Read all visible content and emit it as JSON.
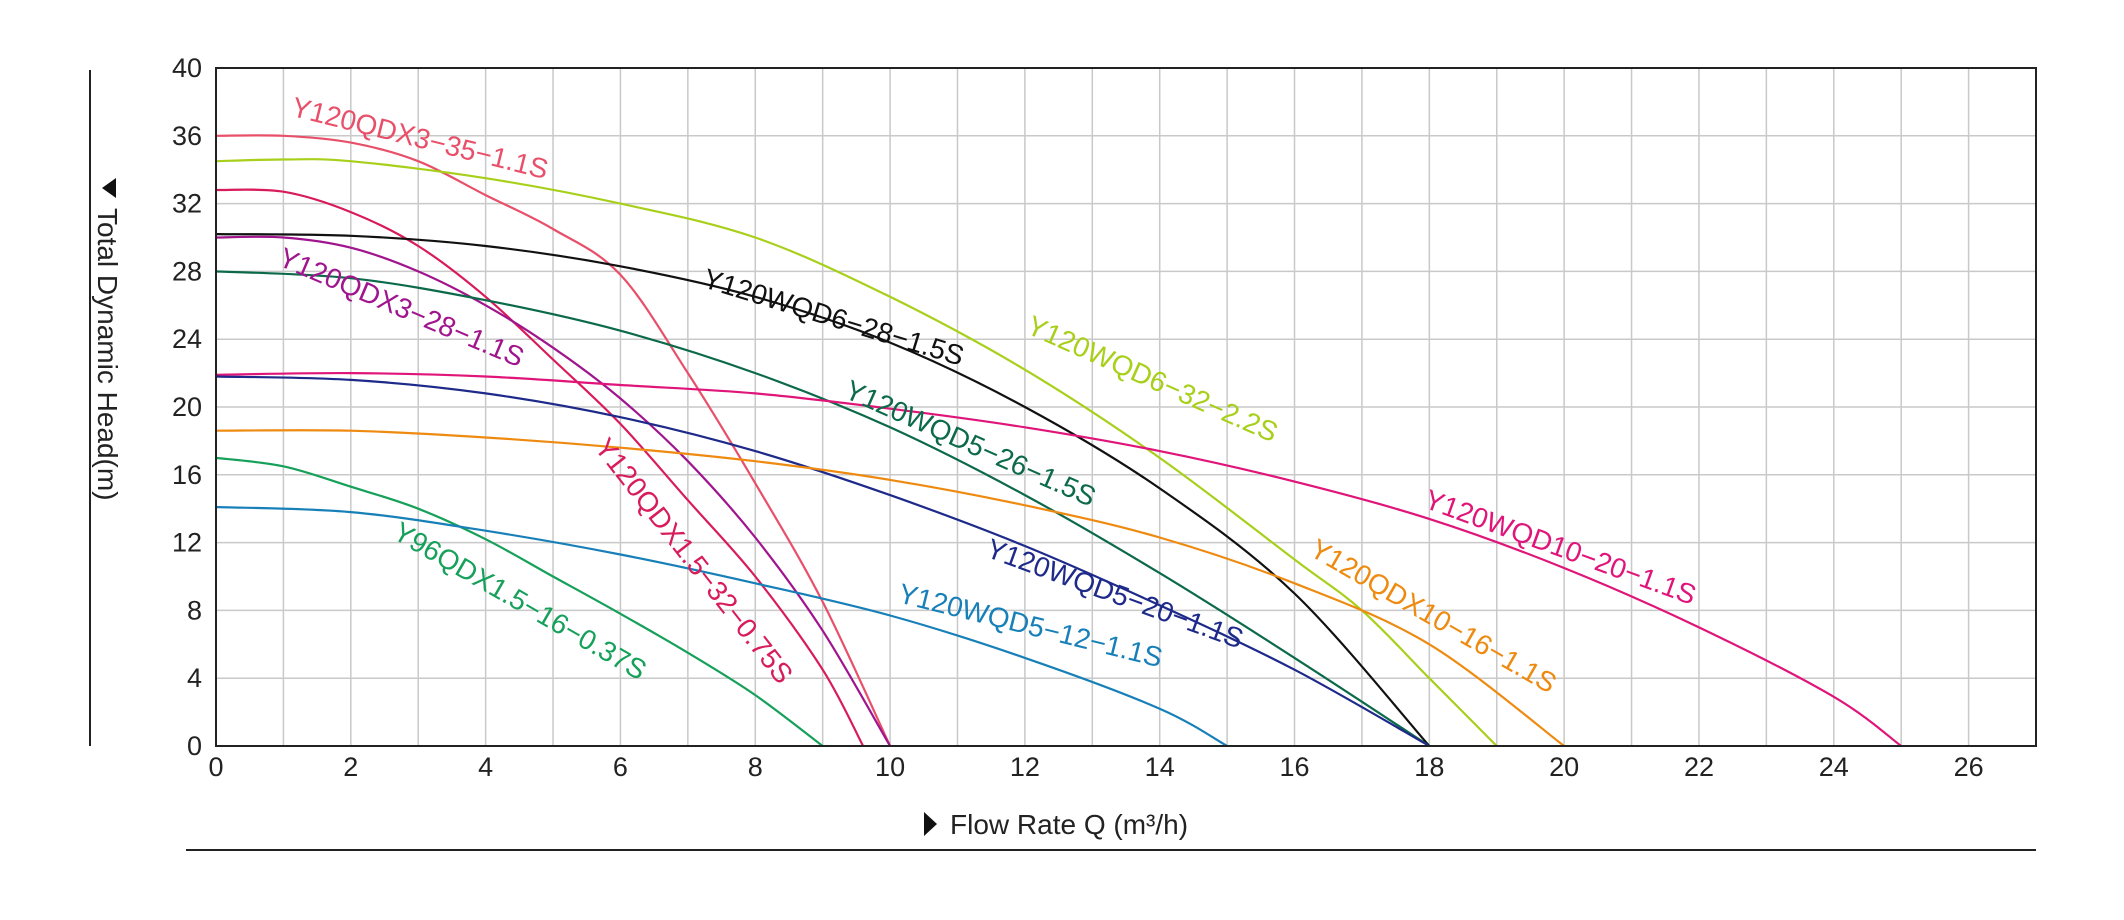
{
  "chart_data": {
    "type": "line",
    "title": "",
    "xlabel": "Flow Rate Q (m³/h)",
    "ylabel": "Total Dynamic Head(m)",
    "xlim": [
      0,
      27
    ],
    "ylim": [
      0,
      40
    ],
    "x_ticks": [
      "0",
      "2",
      "4",
      "6",
      "8",
      "10",
      "12",
      "14",
      "16",
      "18",
      "20",
      "22",
      "24",
      "26"
    ],
    "y_ticks": [
      "0",
      "4",
      "8",
      "12",
      "16",
      "20",
      "24",
      "28",
      "32",
      "36",
      "40"
    ],
    "grid": true,
    "legend": "none (labels placed on curves)",
    "series": [
      {
        "name": "Y120QDX3-35-1.1S",
        "color": "#e8506a",
        "x": [
          0,
          1,
          2,
          3,
          4,
          5,
          6,
          7,
          8,
          9,
          10
        ],
        "y": [
          36.0,
          36.0,
          35.6,
          34.5,
          32.5,
          30.5,
          27.8,
          22.0,
          15.5,
          8.5,
          0
        ]
      },
      {
        "name": "Y120WQD6-32-2.2S",
        "color": "#a8cf1a",
        "x": [
          0,
          1,
          2,
          4,
          6,
          8,
          10,
          12,
          14,
          16,
          17,
          18,
          19
        ],
        "y": [
          34.5,
          34.6,
          34.5,
          33.5,
          32.0,
          30.0,
          26.5,
          22.2,
          17.0,
          11.0,
          8.0,
          4.0,
          0
        ]
      },
      {
        "name": "Y120QDX1.5-32-0.75S",
        "color": "#d81b5a",
        "x": [
          0,
          1,
          2,
          3,
          4,
          5,
          6,
          7,
          8,
          9,
          9.6
        ],
        "y": [
          32.8,
          32.7,
          31.5,
          29.5,
          26.5,
          22.8,
          19.0,
          14.5,
          10.0,
          4.5,
          0
        ]
      },
      {
        "name": "Y120WQD6-28-1.5S",
        "color": "#111111",
        "x": [
          0,
          2,
          4,
          6,
          8,
          10,
          12,
          14,
          16,
          18
        ],
        "y": [
          30.2,
          30.1,
          29.5,
          28.3,
          26.5,
          23.8,
          20.0,
          15.2,
          9.0,
          0
        ]
      },
      {
        "name": "Y120QDX3-28-1.1S",
        "color": "#a0158e",
        "x": [
          0,
          1,
          2,
          3,
          4,
          5,
          6,
          7,
          8,
          9,
          10
        ],
        "y": [
          30.0,
          30.0,
          29.4,
          28.0,
          26.0,
          23.5,
          20.5,
          16.8,
          12.3,
          6.8,
          0
        ]
      },
      {
        "name": "Y120WQD5-26-1.5S",
        "color": "#0c6a4a",
        "x": [
          0,
          2,
          4,
          6,
          8,
          10,
          12,
          14,
          16,
          18
        ],
        "y": [
          28.0,
          27.6,
          26.3,
          24.5,
          22.0,
          18.8,
          14.8,
          10.2,
          5.2,
          0
        ]
      },
      {
        "name": "Y120WQD10-20-1.1S",
        "color": "#e0157a",
        "x": [
          0,
          2,
          4,
          6,
          8,
          10,
          12,
          14,
          16,
          18,
          20,
          22,
          24,
          25
        ],
        "y": [
          21.9,
          22.0,
          21.8,
          21.3,
          20.8,
          19.9,
          18.8,
          17.4,
          15.6,
          13.4,
          10.5,
          7.0,
          2.9,
          0
        ]
      },
      {
        "name": "Y120WQD5-20-1.1S",
        "color": "#1e2a8a",
        "x": [
          0,
          2,
          4,
          6,
          8,
          10,
          12,
          14,
          16,
          18
        ],
        "y": [
          21.8,
          21.6,
          20.8,
          19.4,
          17.4,
          14.8,
          11.8,
          8.3,
          4.5,
          0
        ]
      },
      {
        "name": "Y120QDX10-16-1.1S",
        "color": "#ee8a10",
        "x": [
          0,
          2,
          4,
          6,
          8,
          10,
          12,
          14,
          16,
          18,
          20
        ],
        "y": [
          18.6,
          18.6,
          18.2,
          17.6,
          16.8,
          15.7,
          14.2,
          12.3,
          9.6,
          6.0,
          0
        ]
      },
      {
        "name": "Y96QDX1.5-16-0.37S",
        "color": "#16a05a",
        "x": [
          0,
          1,
          2,
          3,
          4,
          5,
          6,
          7,
          8,
          9
        ],
        "y": [
          17.0,
          16.5,
          15.3,
          14.0,
          12.2,
          10.0,
          7.8,
          5.5,
          3.0,
          0
        ]
      },
      {
        "name": "Y120WQD5-12-1.1S",
        "color": "#1880b8",
        "x": [
          0,
          2,
          4,
          6,
          8,
          10,
          12,
          14,
          15
        ],
        "y": [
          14.1,
          13.8,
          12.7,
          11.3,
          9.6,
          7.7,
          5.2,
          2.2,
          0
        ]
      }
    ],
    "labels": [
      {
        "series": "Y120QDX3-35-1.1S",
        "text": "Y120QDX3−35−1.1S",
        "x": 1.1,
        "y": 37.2,
        "angle": 14
      },
      {
        "series": "Y120WQD6-32-2.2S",
        "text": "Y120WQD6−32−2.2S",
        "x": 12.0,
        "y": 24.4,
        "angle": 24
      },
      {
        "series": "Y120WQD6-28-1.5S",
        "text": "Y120WQD6−28−1.5S",
        "x": 7.2,
        "y": 27.1,
        "angle": 17
      },
      {
        "series": "Y120QDX3-28-1.1S",
        "text": "Y120QDX3−28−1.1S",
        "x": 0.9,
        "y": 28.4,
        "angle": 23
      },
      {
        "series": "Y120WQD5-26-1.5S",
        "text": "Y120WQD5−26−1.5S",
        "x": 9.3,
        "y": 20.6,
        "angle": 24
      },
      {
        "series": "Y120WQD10-20-1.1S",
        "text": "Y120WQD10−20−1.1S",
        "x": 17.9,
        "y": 14.1,
        "angle": 20
      },
      {
        "series": "Y120QDX10-16-1.1S",
        "text": "Y120QDX10−16−1.1S",
        "x": 16.2,
        "y": 11.3,
        "angle": 30
      },
      {
        "series": "Y120WQD5-20-1.1S",
        "text": "Y120WQD5−20−1.1S",
        "x": 11.4,
        "y": 11.2,
        "angle": 20
      },
      {
        "series": "Y120QDX1.5-32-0.75S",
        "text": "Y120QDX1.5−32−0.75S",
        "x": 5.6,
        "y": 17.6,
        "angle": 52
      },
      {
        "series": "Y120WQD5-12-1.1S",
        "text": "Y120WQD5−12−1.1S",
        "x": 10.1,
        "y": 8.5,
        "angle": 14
      },
      {
        "series": "Y96QDX1.5-16-0.37S",
        "text": "Y96QDX1.5−16−0.37S",
        "x": 2.6,
        "y": 12.3,
        "angle": 30
      }
    ]
  }
}
